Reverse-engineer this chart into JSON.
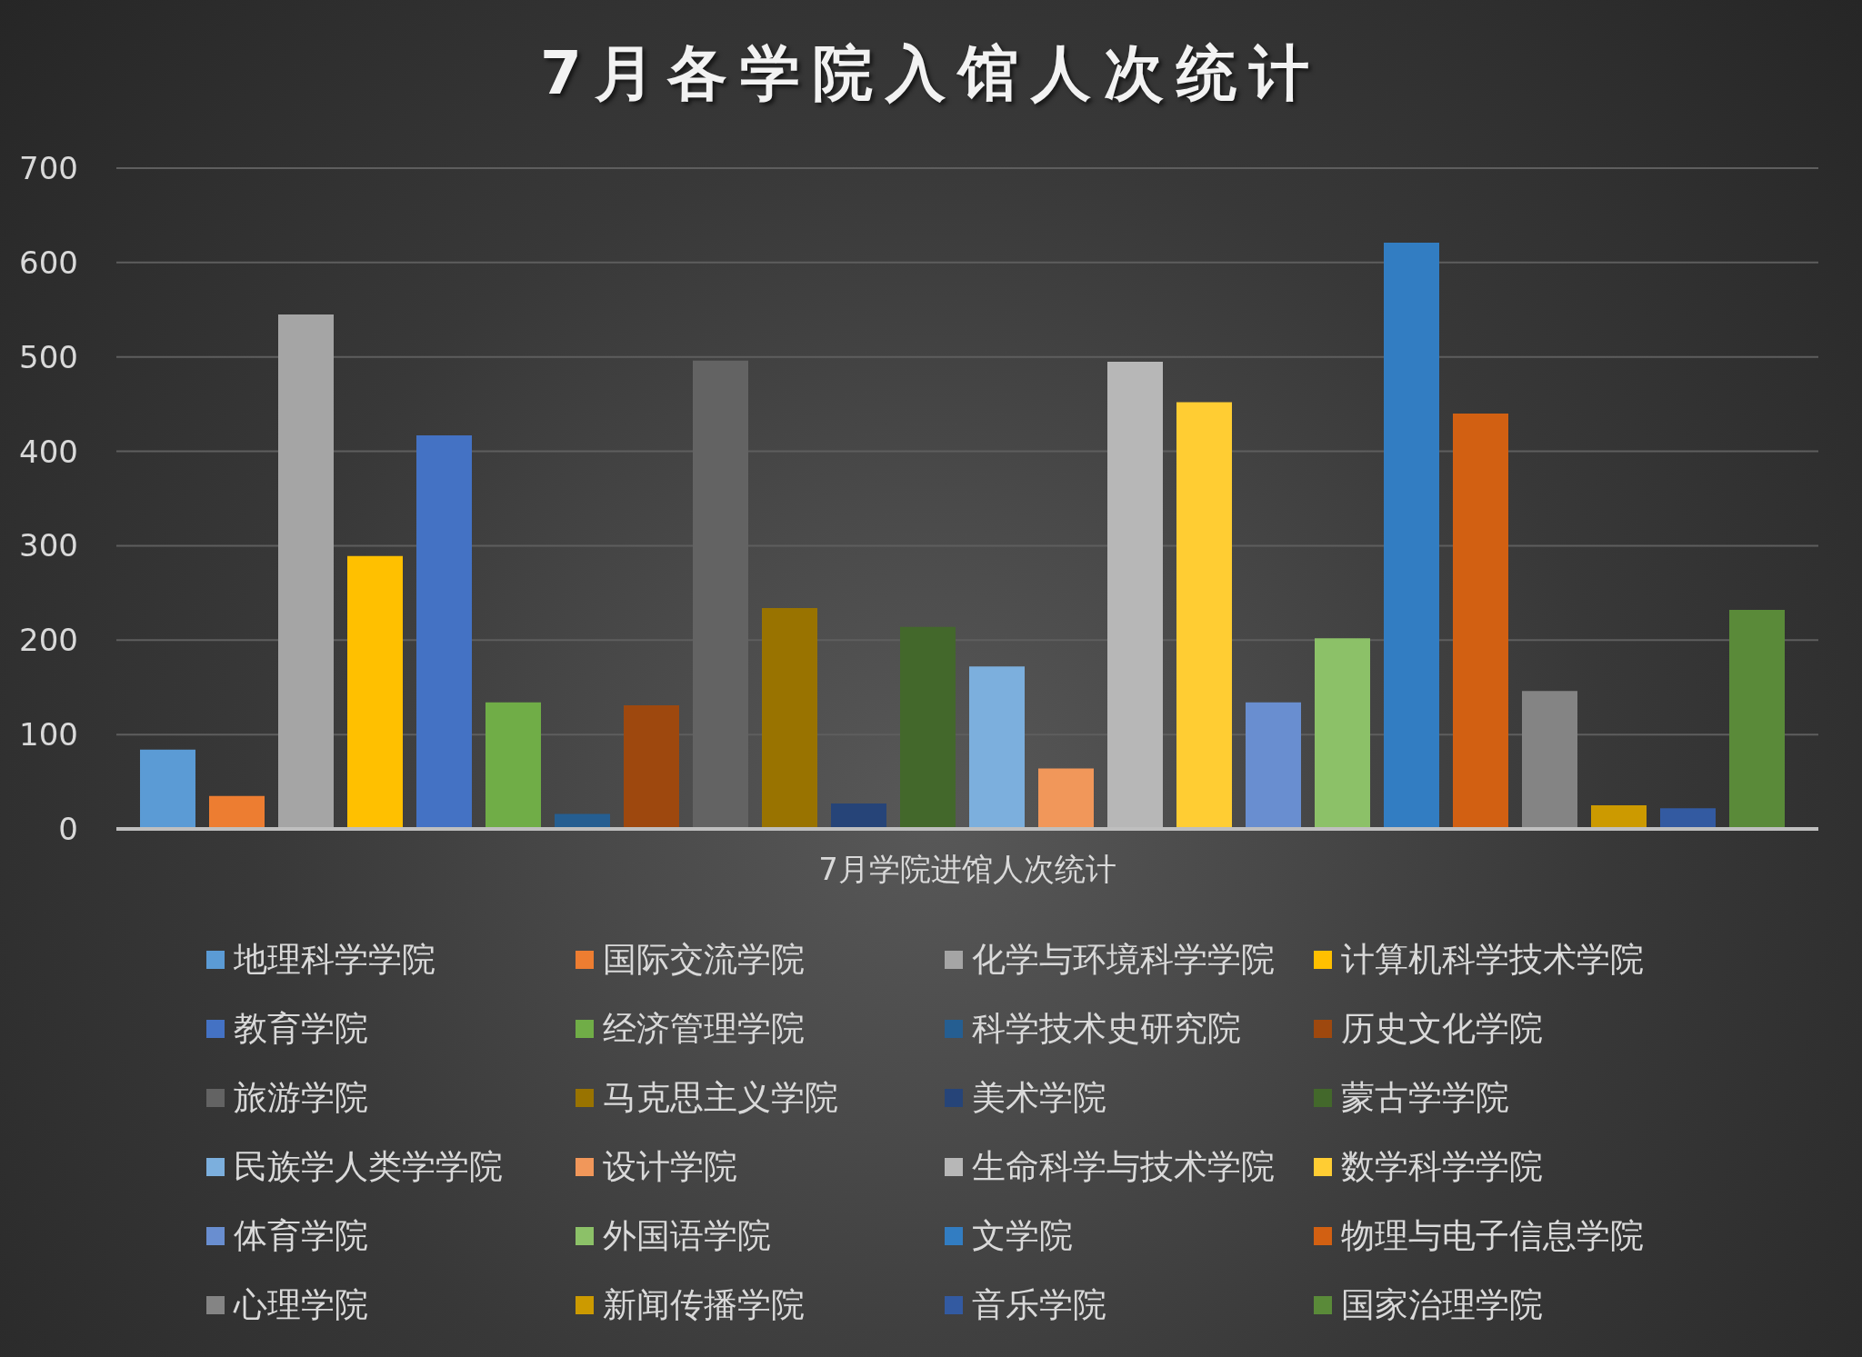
{
  "chart_data": {
    "type": "bar",
    "title": "7月各学院入馆人次统计",
    "categories": [
      "7月学院进馆人次统计"
    ],
    "series": [
      {
        "name": "地理科学学院",
        "color": "#5b9bd5",
        "values": [
          84
        ]
      },
      {
        "name": "国际交流学院",
        "color": "#ed7d31",
        "values": [
          35
        ]
      },
      {
        "name": "化学与环境科学学院",
        "color": "#a5a5a5",
        "values": [
          545
        ]
      },
      {
        "name": "计算机科学技术学院",
        "color": "#ffc000",
        "values": [
          289
        ]
      },
      {
        "name": "教育学院",
        "color": "#4472c4",
        "values": [
          417
        ]
      },
      {
        "name": "经济管理学院",
        "color": "#70ad47",
        "values": [
          134
        ]
      },
      {
        "name": "科学技术史研究院",
        "color": "#255e91",
        "values": [
          16
        ]
      },
      {
        "name": "历史文化学院",
        "color": "#9e480e",
        "values": [
          131
        ]
      },
      {
        "name": "旅游学院",
        "color": "#636363",
        "values": [
          496
        ]
      },
      {
        "name": "马克思主义学院",
        "color": "#997300",
        "values": [
          234
        ]
      },
      {
        "name": "美术学院",
        "color": "#264478",
        "values": [
          27
        ]
      },
      {
        "name": "蒙古学学院",
        "color": "#43682b",
        "values": [
          214
        ]
      },
      {
        "name": "民族学人类学学院",
        "color": "#7cafdd",
        "values": [
          172
        ]
      },
      {
        "name": "设计学院",
        "color": "#f1975a",
        "values": [
          64
        ]
      },
      {
        "name": "生命科学与技术学院",
        "color": "#b7b7b7",
        "values": [
          495
        ]
      },
      {
        "name": "数学科学学院",
        "color": "#ffcd33",
        "values": [
          452
        ]
      },
      {
        "name": "体育学院",
        "color": "#698ed0",
        "values": [
          134
        ]
      },
      {
        "name": "外国语学院",
        "color": "#8cc168",
        "values": [
          202
        ]
      },
      {
        "name": "文学院",
        "color": "#327dc2",
        "values": [
          621
        ]
      },
      {
        "name": "物理与电子信息学院",
        "color": "#d26012",
        "values": [
          440
        ]
      },
      {
        "name": "心理学院",
        "color": "#848484",
        "values": [
          146
        ]
      },
      {
        "name": "新闻传播学院",
        "color": "#cc9a00",
        "values": [
          25
        ]
      },
      {
        "name": "音乐学院",
        "color": "#335aa1",
        "values": [
          22
        ]
      },
      {
        "name": "国家治理学院",
        "color": "#5a8a39",
        "values": [
          232
        ]
      }
    ],
    "ylim": [
      0,
      700
    ],
    "yticks": [
      0,
      100,
      200,
      300,
      400,
      500,
      600,
      700
    ],
    "grid": "y",
    "legend": "bottom"
  }
}
